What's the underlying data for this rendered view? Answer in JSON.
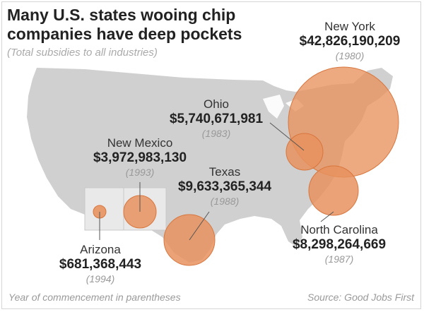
{
  "header": {
    "title": "Many U.S. states wooing chip companies have deep pockets",
    "subtitle": "(Total subsidies to all industries)"
  },
  "footer": {
    "note": "Year of commencement in parentheses",
    "source": "Source: Good Jobs First"
  },
  "colors": {
    "bubble": "#e8925e",
    "bubble_edge": "#d8763e",
    "land": "#d0d0d0",
    "highlight_state": "#e9e9e9"
  },
  "states": [
    {
      "name": "New York",
      "amount": "$42,826,190,209",
      "year": "(1980)",
      "value": 42826190209,
      "start_year": 1980
    },
    {
      "name": "Ohio",
      "amount": "$5,740,671,981",
      "year": "(1983)",
      "value": 5740671981,
      "start_year": 1983
    },
    {
      "name": "New Mexico",
      "amount": "$3,972,983,130",
      "year": "(1993)",
      "value": 3972983130,
      "start_year": 1993
    },
    {
      "name": "Texas",
      "amount": "$9,633,365,344",
      "year": "(1988)",
      "value": 9633365344,
      "start_year": 1988
    },
    {
      "name": "North Carolina",
      "amount": "$8,298,264,669",
      "year": "(1987)",
      "value": 8298264669,
      "start_year": 1987
    },
    {
      "name": "Arizona",
      "amount": "$681,368,443",
      "year": "(1994)",
      "value": 681368443,
      "start_year": 1994
    }
  ]
}
